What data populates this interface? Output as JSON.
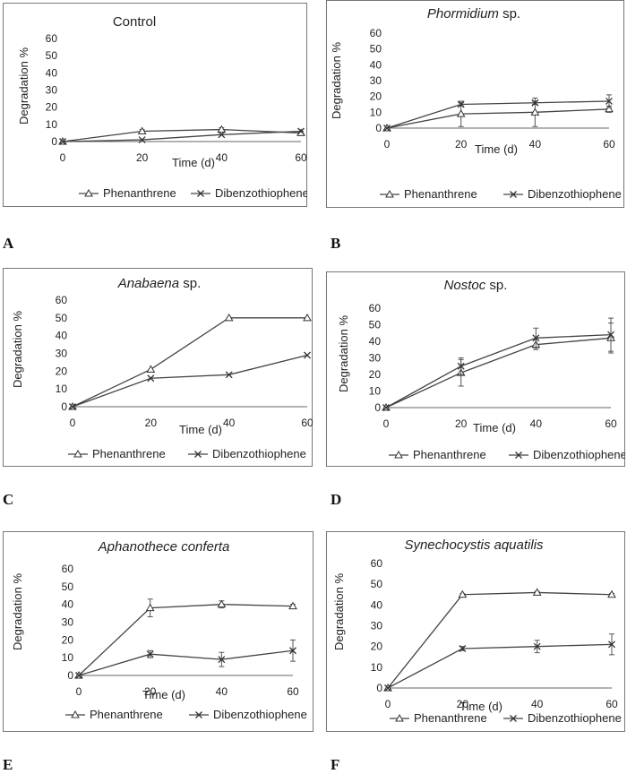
{
  "chart_data": [
    {
      "type": "line",
      "title": "Control",
      "title_italic": false,
      "panel_label": "A",
      "xlabel": "Time (d)",
      "ylabel": "Degradation %",
      "x": [
        0,
        20,
        40,
        60
      ],
      "x_ticks": [
        0,
        20,
        40,
        60
      ],
      "ylim": [
        0,
        60
      ],
      "y_ticks": [
        0,
        10,
        20,
        30,
        40,
        50,
        60
      ],
      "series": [
        {
          "name": "Phenanthrene",
          "marker": "triangle",
          "values": [
            0,
            6,
            7,
            5
          ],
          "errors": [
            0,
            1,
            1,
            1
          ]
        },
        {
          "name": "Dibenzothiophene",
          "marker": "x",
          "values": [
            0,
            1,
            4,
            6
          ],
          "errors": [
            0,
            0,
            0,
            0
          ]
        }
      ],
      "legend_position": "bottom"
    },
    {
      "type": "line",
      "title": "Phormidium",
      "title_suffix": " sp.",
      "title_italic": true,
      "panel_label": "B",
      "xlabel": "Time (d)",
      "ylabel": "Degradation %",
      "x": [
        0,
        20,
        40,
        60
      ],
      "x_ticks": [
        0,
        20,
        40,
        60
      ],
      "ylim": [
        0,
        60
      ],
      "y_ticks": [
        0,
        10,
        20,
        30,
        40,
        50,
        60
      ],
      "series": [
        {
          "name": "Phenanthrene",
          "marker": "triangle",
          "values": [
            0,
            9,
            10,
            12
          ],
          "errors": [
            0,
            8,
            9,
            2
          ]
        },
        {
          "name": "Dibenzothiophene",
          "marker": "x",
          "values": [
            0,
            15,
            16,
            17
          ],
          "errors": [
            0,
            1,
            1,
            4
          ]
        }
      ],
      "legend_position": "bottom"
    },
    {
      "type": "line",
      "title": "Anabaena",
      "title_suffix": " sp.",
      "title_italic": true,
      "panel_label": "C",
      "xlabel": "Time (d)",
      "ylabel": "Degradation %",
      "x": [
        0,
        20,
        40,
        60
      ],
      "x_ticks": [
        0,
        20,
        40,
        60
      ],
      "ylim": [
        0,
        60
      ],
      "y_ticks": [
        0,
        10,
        20,
        30,
        40,
        50,
        60
      ],
      "series": [
        {
          "name": "Phenanthrene",
          "marker": "triangle",
          "values": [
            0,
            21,
            50,
            50
          ],
          "errors": [
            0,
            0,
            0,
            0
          ]
        },
        {
          "name": "Dibenzothiophene",
          "marker": "x",
          "values": [
            0,
            16,
            18,
            29
          ],
          "errors": [
            0,
            0,
            0,
            0
          ]
        }
      ],
      "legend_position": "bottom"
    },
    {
      "type": "line",
      "title": "Nostoc",
      "title_suffix": " sp.",
      "title_italic": true,
      "panel_label": "D",
      "xlabel": "Time (d)",
      "ylabel": "Degradation %",
      "x": [
        0,
        20,
        40,
        60
      ],
      "x_ticks": [
        0,
        20,
        40,
        60
      ],
      "ylim": [
        0,
        60
      ],
      "y_ticks": [
        0,
        10,
        20,
        30,
        40,
        50,
        60
      ],
      "series": [
        {
          "name": "Phenanthrene",
          "marker": "triangle",
          "values": [
            0,
            21,
            38,
            42
          ],
          "errors": [
            0,
            8,
            3,
            9
          ]
        },
        {
          "name": "Dibenzothiophene",
          "marker": "x",
          "values": [
            0,
            25,
            42,
            44
          ],
          "errors": [
            0,
            5,
            6,
            10
          ]
        }
      ],
      "legend_position": "bottom"
    },
    {
      "type": "line",
      "title": "Aphanothece conferta",
      "title_suffix": "",
      "title_italic": true,
      "panel_label": "E",
      "xlabel": "Time (d)",
      "ylabel": "Degradation %",
      "x": [
        0,
        20,
        40,
        60
      ],
      "x_ticks": [
        0,
        20,
        40,
        60
      ],
      "ylim": [
        0,
        60
      ],
      "y_ticks": [
        0,
        10,
        20,
        30,
        40,
        50,
        60
      ],
      "series": [
        {
          "name": "Phenanthrene",
          "marker": "triangle",
          "values": [
            0,
            38,
            40,
            39
          ],
          "errors": [
            0,
            5,
            2,
            1
          ]
        },
        {
          "name": "Dibenzothiophene",
          "marker": "x",
          "values": [
            0,
            12,
            9,
            14
          ],
          "errors": [
            0,
            2,
            4,
            6
          ]
        }
      ],
      "legend_position": "bottom"
    },
    {
      "type": "line",
      "title": "Synechocystis aquatilis",
      "title_suffix": "",
      "title_italic": true,
      "panel_label": "F",
      "xlabel": "Time (d)",
      "ylabel": "Degradation %",
      "x": [
        0,
        20,
        40,
        60
      ],
      "x_ticks": [
        0,
        20,
        40,
        60
      ],
      "ylim": [
        0,
        60
      ],
      "y_ticks": [
        0,
        10,
        20,
        30,
        40,
        50,
        60
      ],
      "series": [
        {
          "name": "Phenanthrene",
          "marker": "triangle",
          "values": [
            0,
            45,
            46,
            45
          ],
          "errors": [
            0,
            0.5,
            0.5,
            0.5
          ]
        },
        {
          "name": "Dibenzothiophene",
          "marker": "x",
          "values": [
            0,
            19,
            20,
            21
          ],
          "errors": [
            0,
            1,
            3,
            5
          ]
        }
      ],
      "legend_position": "bottom"
    }
  ]
}
